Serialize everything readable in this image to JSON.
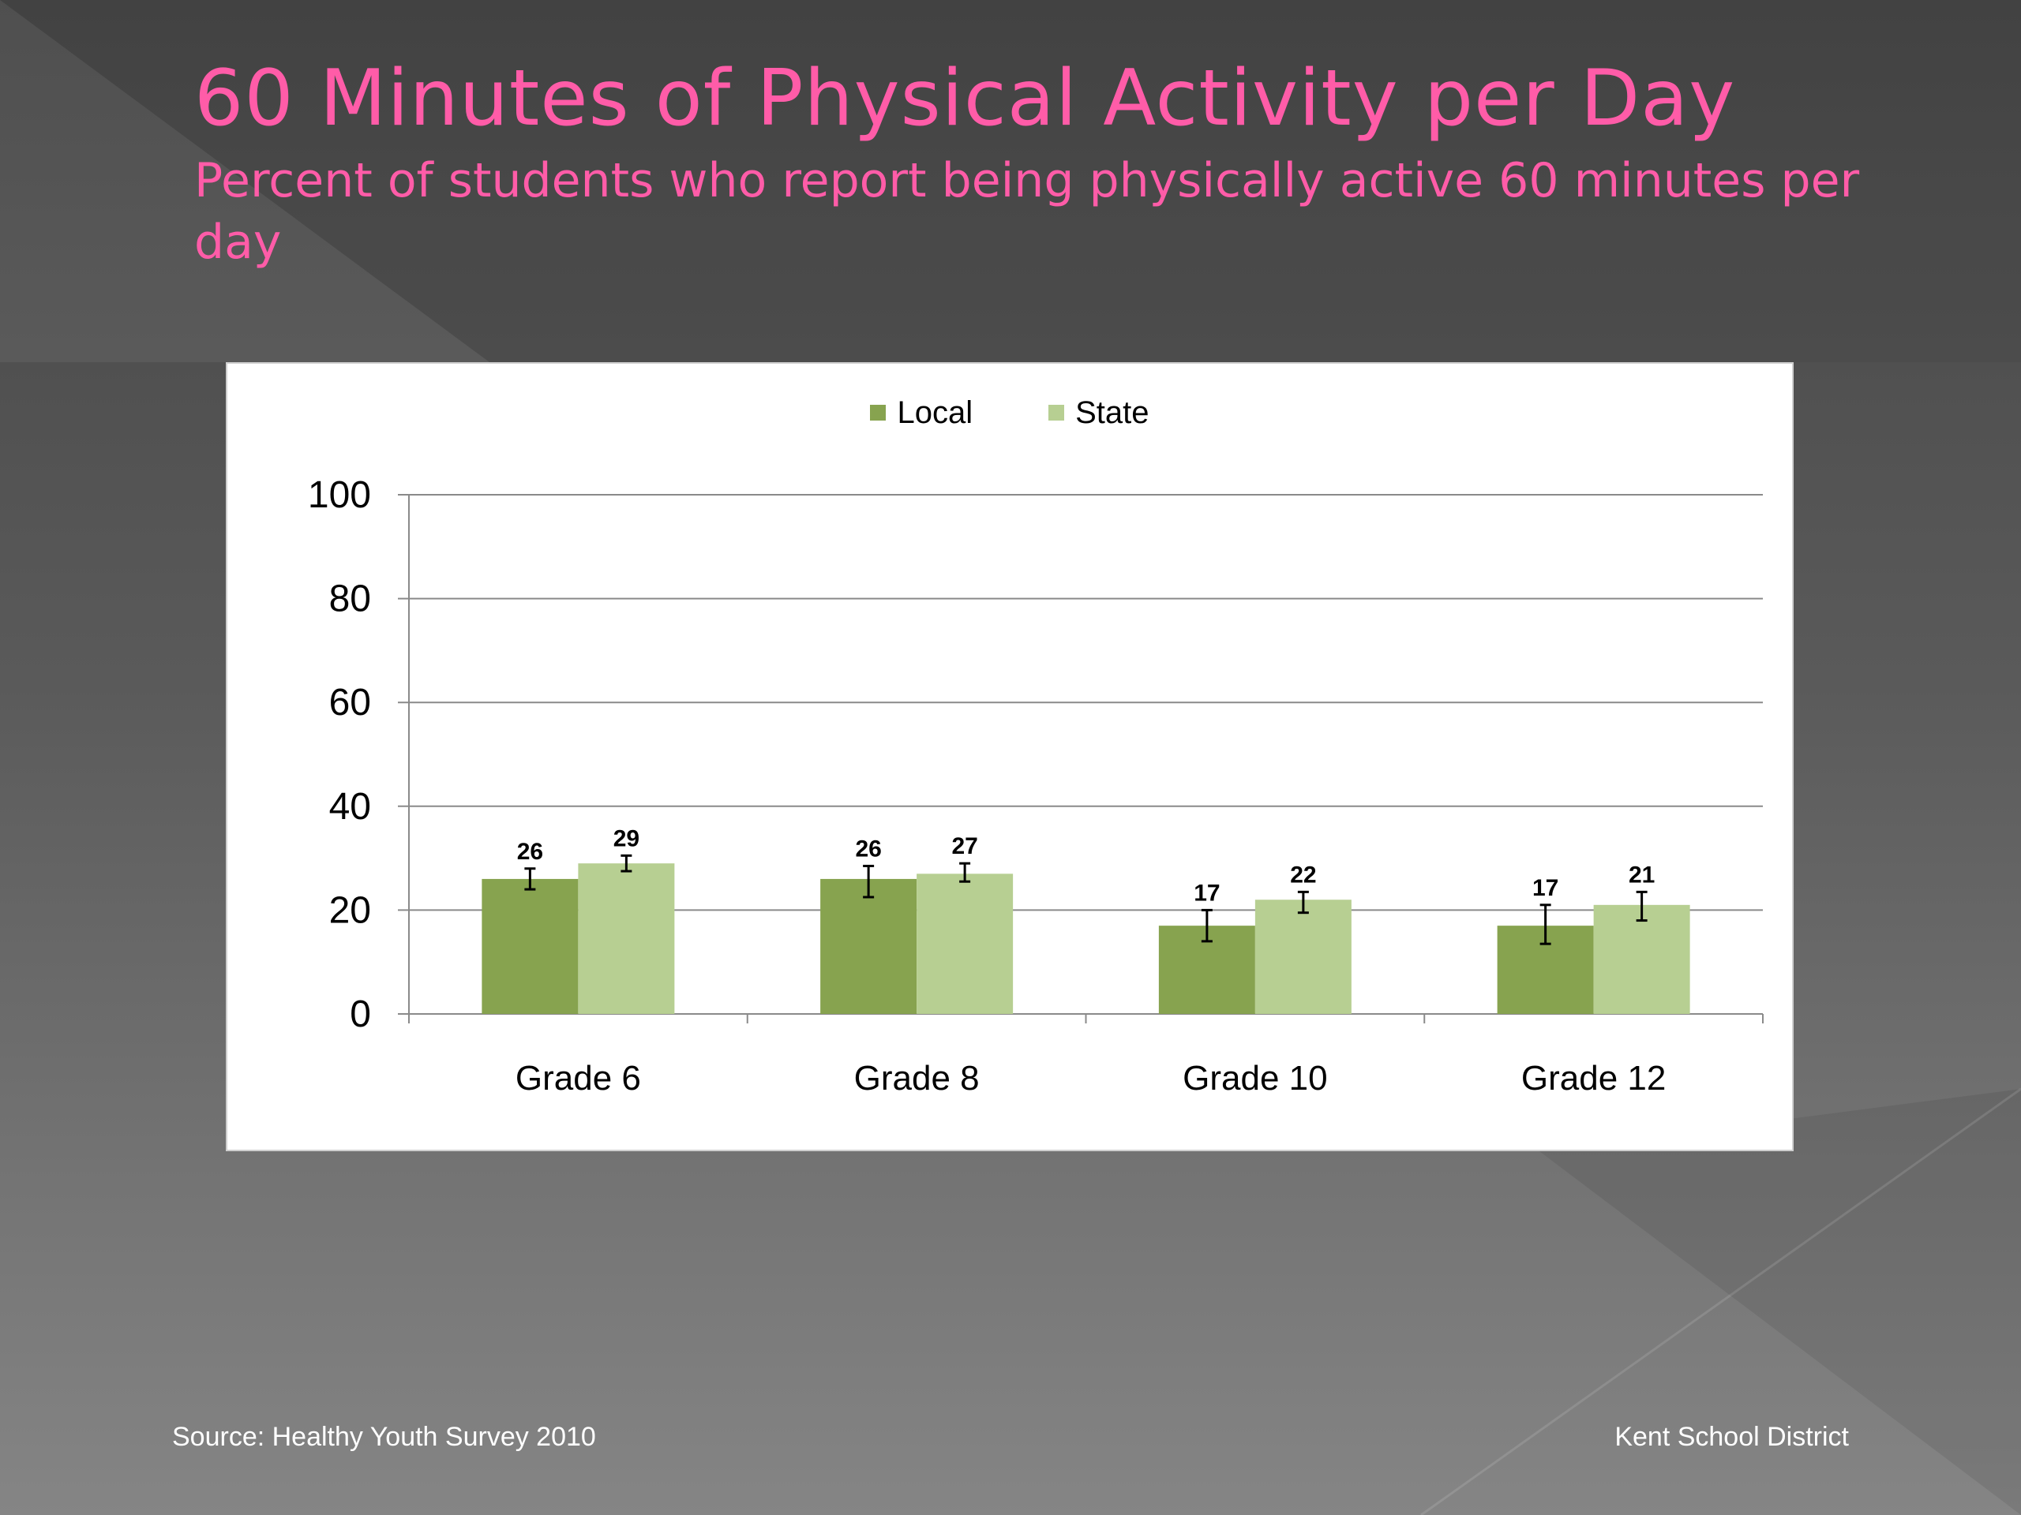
{
  "slide": {
    "title": "60 Minutes of Physical Activity per Day",
    "subtitle": "Percent of students who report being physically active 60 minutes per day"
  },
  "footer": {
    "source": "Source: Healthy Youth Survey 2010",
    "org": "Kent School District"
  },
  "colors": {
    "local": "#87a34f",
    "state": "#b7cf92",
    "title": "#ff5ca8"
  },
  "chart_data": {
    "type": "bar",
    "categories": [
      "Grade 6",
      "Grade 8",
      "Grade 10",
      "Grade 12"
    ],
    "series": [
      {
        "name": "Local",
        "values": [
          26,
          26,
          17,
          17
        ],
        "labels": [
          "26",
          "26",
          "17",
          "17"
        ],
        "error": [
          [
            24,
            28
          ],
          [
            22.5,
            28.5
          ],
          [
            14,
            20
          ],
          [
            13.5,
            21
          ]
        ]
      },
      {
        "name": "State",
        "values": [
          29,
          27,
          22,
          21
        ],
        "labels": [
          "29",
          "27",
          "22",
          "21"
        ],
        "error": [
          [
            27.5,
            30.5
          ],
          [
            25.5,
            29
          ],
          [
            19.5,
            23.5
          ],
          [
            18,
            23.5
          ]
        ]
      }
    ],
    "yticks": [
      "0",
      "20",
      "40",
      "60",
      "80",
      "100"
    ],
    "ylim": [
      0,
      100
    ],
    "grid": true,
    "legend": "top-center",
    "xlabel": "",
    "ylabel": ""
  }
}
